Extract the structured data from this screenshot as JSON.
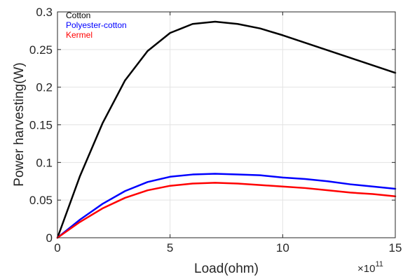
{
  "chart_data": {
    "type": "line",
    "title": "",
    "xlabel": "Load(ohm)",
    "ylabel": "Power harvesting(W)",
    "x_exponent_base": "×10",
    "x_exponent_power": "11",
    "xlim": [
      0,
      15
    ],
    "ylim": [
      0,
      0.3
    ],
    "x_ticks": [
      0,
      5,
      10,
      15
    ],
    "x_tick_labels": [
      "0",
      "5",
      "10",
      "15"
    ],
    "y_ticks": [
      0,
      0.05,
      0.1,
      0.15,
      0.2,
      0.25,
      0.3
    ],
    "y_tick_labels": [
      "0",
      "0.05",
      "0.1",
      "0.15",
      "0.2",
      "0.25",
      "0.3"
    ],
    "grid": true,
    "legend_position": "top-left",
    "x": [
      0,
      1,
      2,
      3,
      4,
      5,
      6,
      7,
      8,
      9,
      10,
      11,
      12,
      13,
      14,
      15
    ],
    "series": [
      {
        "name": "Cotton",
        "color": "#000000",
        "values": [
          0,
          0.082,
          0.152,
          0.209,
          0.248,
          0.272,
          0.284,
          0.287,
          0.284,
          0.278,
          0.269,
          0.259,
          0.249,
          0.239,
          0.229,
          0.219
        ]
      },
      {
        "name": "Polyester-cotton",
        "color": "#0000ff",
        "values": [
          0,
          0.024,
          0.045,
          0.062,
          0.074,
          0.081,
          0.084,
          0.085,
          0.084,
          0.083,
          0.08,
          0.078,
          0.075,
          0.071,
          0.068,
          0.065
        ]
      },
      {
        "name": "Kermel",
        "color": "#ff0000",
        "values": [
          0,
          0.021,
          0.039,
          0.053,
          0.063,
          0.069,
          0.072,
          0.073,
          0.072,
          0.07,
          0.068,
          0.066,
          0.063,
          0.06,
          0.058,
          0.055
        ]
      }
    ]
  }
}
